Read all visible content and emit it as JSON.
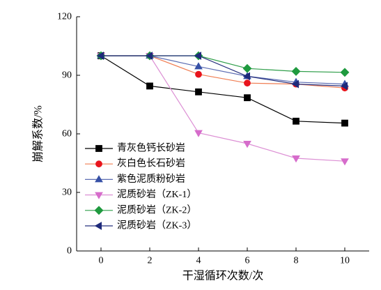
{
  "chart_data": {
    "type": "line",
    "xlabel": "干湿循环次数/次",
    "ylabel": "崩解系数/%",
    "xlim": [
      -1,
      11
    ],
    "ylim": [
      0,
      120
    ],
    "xticks": [
      0,
      2,
      4,
      6,
      8,
      10
    ],
    "yticks": [
      0,
      30,
      60,
      90,
      120
    ],
    "grid": false,
    "legend_position": "lower-left",
    "x": [
      0,
      2,
      4,
      6,
      8,
      10
    ],
    "series": [
      {
        "name": "青灰色钙长砂岩",
        "marker": "square",
        "color": "#000000",
        "line_color": "#000000",
        "values": [
          100,
          84.5,
          81.5,
          78.5,
          66.5,
          65.5
        ]
      },
      {
        "name": "灰白色长石砂岩",
        "marker": "circle",
        "color": "#e8141c",
        "line_color": "#f07d52",
        "values": [
          100,
          100,
          90.5,
          86,
          85.5,
          83.5
        ]
      },
      {
        "name": "紫色泥质粉砂岩",
        "marker": "triangle-up",
        "color": "#3650a6",
        "line_color": "#5d6db3",
        "values": [
          100,
          100,
          94.5,
          89.5,
          86.5,
          85.5
        ]
      },
      {
        "name": "泥质砂岩（ZK-1）",
        "marker": "triangle-down",
        "color": "#d66ccb",
        "line_color": "#dc8fd4",
        "values": [
          100,
          100,
          60.5,
          55,
          47.5,
          46
        ]
      },
      {
        "name": "泥质砂岩（ZK-2）",
        "marker": "diamond",
        "color": "#1f9a3f",
        "line_color": "#2f9e4a",
        "values": [
          100,
          100,
          100,
          93.5,
          92,
          91.5
        ]
      },
      {
        "name": "泥质砂岩（ZK-3）",
        "marker": "triangle-left",
        "color": "#1e2a7a",
        "line_color": "#26307e",
        "values": [
          100,
          100,
          100,
          89.5,
          85.5,
          84.5
        ]
      }
    ]
  }
}
